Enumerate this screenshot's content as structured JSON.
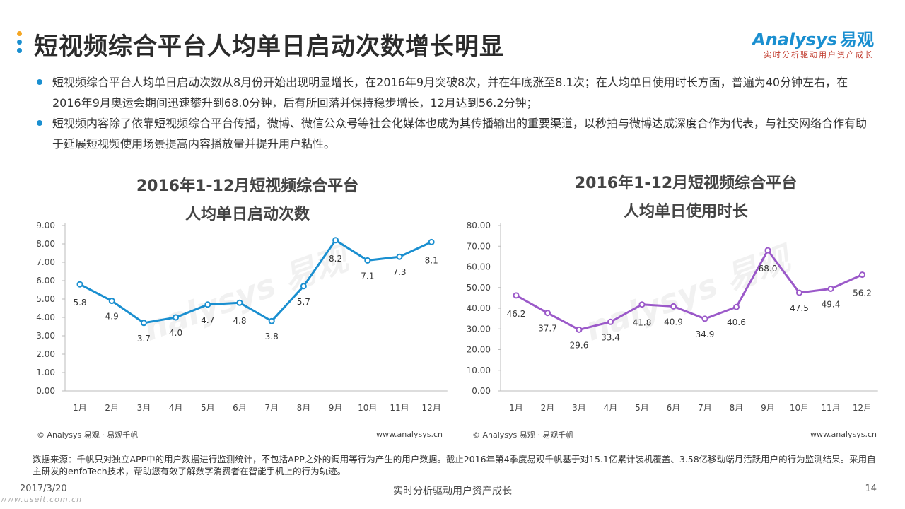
{
  "header": {
    "title": "短视频综合平台人均单日启动次数增长明显",
    "logo_text": "nalysys",
    "logo_initial": "A",
    "logo_cn": "易观",
    "logo_slogan": "实时分析驱动用户资产成长",
    "dot_colors": [
      "#f5a623",
      "#1a8fd0",
      "#1a8fd0"
    ]
  },
  "bullets": [
    "短视频综合平台人均单日启动次数从8月份开始出现明显增长，在2016年9月突破8次，并在年底涨至8.1次；在人均单日使用时长方面，普遍为40分钟左右，在2016年9月奥运会期间迅速攀升到68.0分钟，后有所回落并保持稳步增长，12月达到56.2分钟；",
    "短视频内容除了依靠短视频综合平台传播，微博、微信公众号等社会化媒体也成为其传播输出的重要渠道，以秒拍与微博达成深度合作为代表，与社交网络合作有助于延展短视频使用场景提高内容播放量并提升用户粘性。"
  ],
  "chart_data": [
    {
      "type": "line",
      "title_line1": "2016年1-12月短视频综合平台",
      "title_line2": "人均单日启动次数",
      "categories": [
        "1月",
        "2月",
        "3月",
        "4月",
        "5月",
        "6月",
        "7月",
        "8月",
        "9月",
        "10月",
        "11月",
        "12月"
      ],
      "values": [
        5.8,
        4.9,
        3.7,
        4.0,
        4.7,
        4.8,
        3.8,
        5.7,
        8.2,
        7.1,
        7.3,
        8.1
      ],
      "labels": [
        "5.8",
        "4.9",
        "3.7",
        "4.0",
        "4.7",
        "4.8",
        "3.8",
        "5.7",
        "8.2",
        "7.1",
        "7.3",
        "8.1"
      ],
      "yticks": [
        "0.00",
        "1.00",
        "2.00",
        "3.00",
        "4.00",
        "5.00",
        "6.00",
        "7.00",
        "8.00",
        "9.00"
      ],
      "ylim": [
        0,
        9
      ],
      "color": "#1a8fd0",
      "grid": false
    },
    {
      "type": "line",
      "title_line1": "2016年1-12月短视频综合平台",
      "title_line2": "人均单日使用时长",
      "categories": [
        "1月",
        "2月",
        "3月",
        "4月",
        "5月",
        "6月",
        "7月",
        "8月",
        "9月",
        "10月",
        "11月",
        "12月"
      ],
      "values": [
        46.2,
        37.7,
        29.6,
        33.4,
        41.8,
        40.9,
        34.9,
        40.6,
        68.0,
        47.5,
        49.4,
        56.2
      ],
      "labels": [
        "46.2",
        "37.7",
        "29.6",
        "33.4",
        "41.8",
        "40.9",
        "34.9",
        "40.6",
        "68.0",
        "47.5",
        "49.4",
        "56.2"
      ],
      "yticks": [
        "0.00",
        "10.00",
        "20.00",
        "30.00",
        "40.00",
        "50.00",
        "60.00",
        "70.00",
        "80.00"
      ],
      "ylim": [
        0,
        80
      ],
      "color": "#9b59c9",
      "grid": false
    }
  ],
  "chart_footers": {
    "copyright": "© Analysys 易观 · 易观千帆",
    "site": "www.analysys.cn"
  },
  "watermark": {
    "text": "nalysys 易观",
    "sub": "实时分析驱动用户资产成长"
  },
  "note": "数据来源：千帆只对独立APP中的用户数据进行监测统计，不包括APP之外的调用等行为产生的用户数据。截止2016年第4季度易观千帆基于对15.1亿累计装机覆盖、3.58亿移动端月活跃用户的行为监测结果。采用自主研发的enfoTech技术，帮助您有效了解数字消费者在智能手机上的行为轨迹。",
  "footer": {
    "date": "2017/3/20",
    "slogan": "实时分析驱动用户资产成长",
    "page": "14",
    "bottom_url": "www.useit.com.cn"
  }
}
